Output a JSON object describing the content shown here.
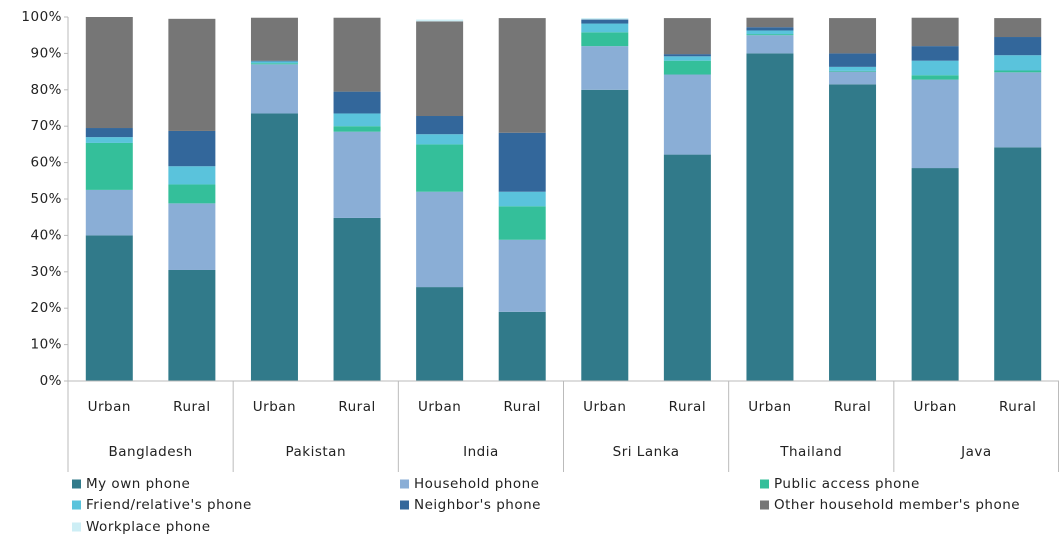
{
  "chart_data": {
    "type": "stacked_bar",
    "categories": [
      "Urban",
      "Rural",
      "Urban",
      "Rural",
      "Urban",
      "Rural",
      "Urban",
      "Rural",
      "Urban",
      "Rural",
      "Urban",
      "Rural"
    ],
    "groups": [
      "Bangladesh",
      "Pakistan",
      "India",
      "Sri Lanka",
      "Thailand",
      "Java"
    ],
    "series": [
      {
        "name": "My own phone",
        "color": "#317a8a",
        "values": [
          40,
          30.5,
          73.5,
          44.8,
          25.8,
          19,
          80,
          62.2,
          90,
          81.5,
          58.5,
          64.2
        ]
      },
      {
        "name": "Household phone",
        "color": "#8aaed6",
        "values": [
          12.5,
          18.3,
          13.5,
          23.7,
          26.2,
          19.8,
          12,
          22,
          5,
          3.5,
          24.3,
          20.6
        ]
      },
      {
        "name": "Public access phone",
        "color": "#34bf9a",
        "values": [
          12.9,
          5.2,
          0.3,
          1.5,
          13,
          9.2,
          3.8,
          3.8,
          0.3,
          0.2,
          1.2,
          0.5
        ]
      },
      {
        "name": "Friend/relative's phone",
        "color": "#5ac3dc",
        "values": [
          1.6,
          5,
          0.5,
          3.5,
          2.8,
          4,
          2.4,
          1.2,
          1,
          1.1,
          4,
          4.2
        ]
      },
      {
        "name": "Neighbor's phone",
        "color": "#33679b",
        "values": [
          2.5,
          9.7,
          0.2,
          6,
          5,
          16.2,
          1.1,
          0.6,
          0.9,
          3.7,
          4,
          5
        ]
      },
      {
        "name": "Other household member's phone",
        "color": "#767676",
        "values": [
          30.5,
          30.8,
          11.8,
          20.3,
          26,
          31.5,
          0,
          9.9,
          2.6,
          9.7,
          7.8,
          5.2
        ]
      },
      {
        "name": "Workplace phone",
        "color": "#cdeef5",
        "values": [
          0,
          0,
          0,
          0,
          0.5,
          0,
          0.4,
          0,
          0,
          0,
          0,
          0
        ]
      }
    ],
    "ylim": [
      0,
      100
    ],
    "yticks": [
      {
        "value": 0,
        "label": "0%"
      },
      {
        "value": 10,
        "label": "10%"
      },
      {
        "value": 20,
        "label": "20%"
      },
      {
        "value": 30,
        "label": "30%"
      },
      {
        "value": 40,
        "label": "40%"
      },
      {
        "value": 50,
        "label": "50%"
      },
      {
        "value": 60,
        "label": "60%"
      },
      {
        "value": 70,
        "label": "70%"
      },
      {
        "value": 80,
        "label": "80%"
      },
      {
        "value": 90,
        "label": "90%"
      },
      {
        "value": 100,
        "label": "100%"
      }
    ],
    "grid": false
  }
}
